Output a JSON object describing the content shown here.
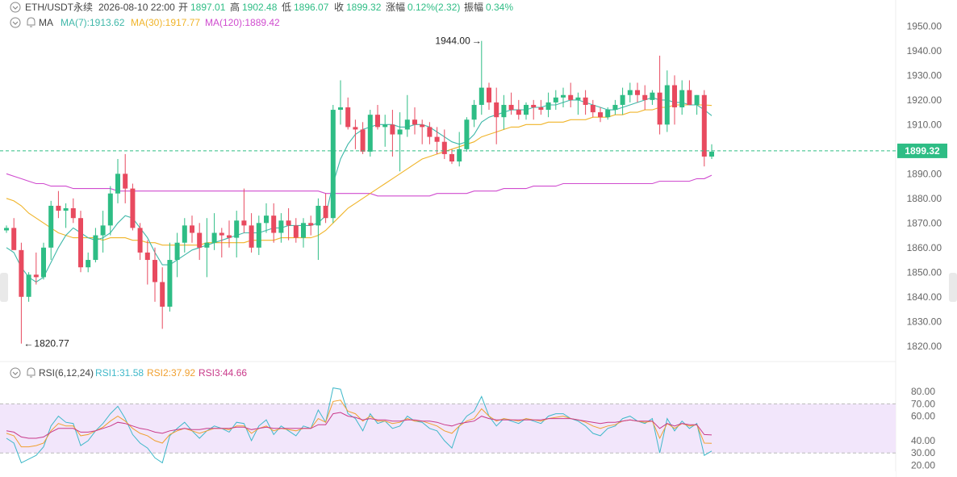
{
  "header": {
    "symbol": "ETH/USDT永续",
    "datetime": "2026-08-10 22:00",
    "open_label": "开",
    "open": "1897.01",
    "high_label": "高",
    "high": "1902.48",
    "low_label": "低",
    "low": "1896.07",
    "close_label": "收",
    "close": "1899.32",
    "change_label": "涨幅",
    "change": "0.12%(2.32)",
    "amp_label": "振幅",
    "amp": "0.34%"
  },
  "ma_legend": {
    "name": "MA",
    "ma7": "MA(7):1913.62",
    "ma30": "MA(30):1917.77",
    "ma120": "MA(120):1889.42"
  },
  "rsi_legend": {
    "name": "RSI(6,12,24)",
    "rsi1": "RSI1:31.58",
    "rsi2": "RSI2:37.92",
    "rsi3": "RSI3:44.66"
  },
  "annotations": {
    "high_label": "1944.00",
    "low_label": "1820.77",
    "last_price": "1899.32"
  },
  "colors": {
    "up": "#2ebd85",
    "down": "#e84a5f",
    "ma7": "#3fb8a9",
    "ma30": "#f0b429",
    "ma120": "#d04ccf",
    "rsi1": "#3fb8c9",
    "rsi2": "#f0a030",
    "rsi3": "#c93a8a",
    "rsi_band": "#f2e6fb"
  },
  "chart_data": [
    {
      "type": "candlestick",
      "ylim": [
        1815,
        1958
      ],
      "y_ticks": [
        1820,
        1830,
        1840,
        1850,
        1860,
        1870,
        1880,
        1890,
        1900,
        1910,
        1920,
        1930,
        1940,
        1950
      ],
      "last_price": 1899.32,
      "candles": [
        [
          1867,
          1869,
          1866,
          1868
        ],
        [
          1868,
          1872,
          1860,
          1859
        ],
        [
          1859,
          1862,
          1821,
          1840
        ],
        [
          1840,
          1850,
          1838,
          1849
        ],
        [
          1849,
          1858,
          1845,
          1848
        ],
        [
          1848,
          1862,
          1847,
          1860
        ],
        [
          1860,
          1879,
          1855,
          1877
        ],
        [
          1877,
          1883,
          1872,
          1875
        ],
        [
          1875,
          1878,
          1868,
          1876
        ],
        [
          1876,
          1880,
          1870,
          1872
        ],
        [
          1872,
          1875,
          1850,
          1852
        ],
        [
          1852,
          1858,
          1850,
          1855
        ],
        [
          1855,
          1868,
          1854,
          1865
        ],
        [
          1865,
          1875,
          1858,
          1869
        ],
        [
          1869,
          1885,
          1865,
          1882
        ],
        [
          1882,
          1896,
          1878,
          1890
        ],
        [
          1890,
          1898,
          1878,
          1884
        ],
        [
          1884,
          1886,
          1867,
          1868
        ],
        [
          1868,
          1870,
          1855,
          1858
        ],
        [
          1858,
          1863,
          1845,
          1855
        ],
        [
          1855,
          1860,
          1838,
          1846
        ],
        [
          1846,
          1852,
          1827,
          1836
        ],
        [
          1836,
          1862,
          1834,
          1855
        ],
        [
          1855,
          1866,
          1848,
          1862
        ],
        [
          1862,
          1872,
          1858,
          1869
        ],
        [
          1869,
          1873,
          1862,
          1866
        ],
        [
          1866,
          1870,
          1855,
          1860
        ],
        [
          1860,
          1872,
          1848,
          1862
        ],
        [
          1862,
          1874,
          1859,
          1866
        ],
        [
          1866,
          1868,
          1856,
          1865
        ],
        [
          1865,
          1871,
          1860,
          1864
        ],
        [
          1864,
          1875,
          1856,
          1871
        ],
        [
          1871,
          1884,
          1866,
          1869
        ],
        [
          1869,
          1874,
          1858,
          1860
        ],
        [
          1860,
          1873,
          1857,
          1870
        ],
        [
          1870,
          1878,
          1866,
          1873
        ],
        [
          1873,
          1878,
          1862,
          1866
        ],
        [
          1866,
          1874,
          1862,
          1871
        ],
        [
          1871,
          1876,
          1863,
          1869
        ],
        [
          1869,
          1872,
          1862,
          1864
        ],
        [
          1864,
          1872,
          1860,
          1870
        ],
        [
          1870,
          1873,
          1865,
          1869
        ],
        [
          1869,
          1880,
          1855,
          1877
        ],
        [
          1877,
          1882,
          1870,
          1872
        ],
        [
          1872,
          1918,
          1870,
          1916
        ],
        [
          1916,
          1928,
          1910,
          1917
        ],
        [
          1917,
          1921,
          1908,
          1909
        ],
        [
          1909,
          1912,
          1900,
          1908
        ],
        [
          1908,
          1911,
          1898,
          1899
        ],
        [
          1899,
          1916,
          1897,
          1914
        ],
        [
          1914,
          1918,
          1908,
          1909
        ],
        [
          1909,
          1914,
          1901,
          1910
        ],
        [
          1910,
          1916,
          1897,
          1906
        ],
        [
          1906,
          1915,
          1891,
          1908
        ],
        [
          1908,
          1922,
          1905,
          1912
        ],
        [
          1912,
          1917,
          1906,
          1910
        ],
        [
          1910,
          1912,
          1902,
          1909
        ],
        [
          1909,
          1911,
          1902,
          1905
        ],
        [
          1905,
          1909,
          1898,
          1903
        ],
        [
          1903,
          1908,
          1896,
          1898
        ],
        [
          1898,
          1900,
          1894,
          1895
        ],
        [
          1895,
          1907,
          1893,
          1900
        ],
        [
          1900,
          1913,
          1899,
          1912
        ],
        [
          1912,
          1920,
          1909,
          1918
        ],
        [
          1918,
          1944,
          1914,
          1925
        ],
        [
          1925,
          1927,
          1916,
          1919
        ],
        [
          1919,
          1925,
          1902,
          1913
        ],
        [
          1913,
          1922,
          1908,
          1918
        ],
        [
          1918,
          1923,
          1914,
          1916
        ],
        [
          1916,
          1920,
          1912,
          1914
        ],
        [
          1914,
          1919,
          1912,
          1918
        ],
        [
          1918,
          1920,
          1912,
          1917
        ],
        [
          1917,
          1920,
          1914,
          1916
        ],
        [
          1916,
          1923,
          1913,
          1919
        ],
        [
          1919,
          1924,
          1916,
          1921
        ],
        [
          1921,
          1925,
          1917,
          1922
        ],
        [
          1922,
          1927,
          1917,
          1920
        ],
        [
          1920,
          1923,
          1914,
          1921
        ],
        [
          1921,
          1924,
          1914,
          1918
        ],
        [
          1918,
          1920,
          1913,
          1915
        ],
        [
          1915,
          1917,
          1911,
          1913
        ],
        [
          1913,
          1917,
          1912,
          1916
        ],
        [
          1916,
          1920,
          1914,
          1918
        ],
        [
          1918,
          1925,
          1914,
          1922
        ],
        [
          1922,
          1927,
          1919,
          1924
        ],
        [
          1924,
          1927,
          1919,
          1922
        ],
        [
          1922,
          1926,
          1916,
          1920
        ],
        [
          1920,
          1924,
          1918,
          1923
        ],
        [
          1923,
          1938,
          1906,
          1910
        ],
        [
          1910,
          1932,
          1907,
          1926
        ],
        [
          1926,
          1930,
          1910,
          1917
        ],
        [
          1917,
          1928,
          1914,
          1924
        ],
        [
          1924,
          1928,
          1919,
          1918
        ],
        [
          1918,
          1922,
          1914,
          1922
        ],
        [
          1922,
          1924,
          1893,
          1897
        ],
        [
          1897,
          1902,
          1896,
          1899
        ]
      ],
      "ma7": [
        1860,
        1858,
        1852,
        1848,
        1846,
        1848,
        1854,
        1860,
        1865,
        1868,
        1866,
        1864,
        1863,
        1864,
        1866,
        1870,
        1873,
        1872,
        1868,
        1864,
        1858,
        1853,
        1853,
        1855,
        1857,
        1859,
        1860,
        1861,
        1862,
        1863,
        1864,
        1865,
        1866,
        1866,
        1866,
        1867,
        1868,
        1868,
        1869,
        1869,
        1869,
        1869,
        1870,
        1873,
        1886,
        1896,
        1902,
        1906,
        1908,
        1909,
        1910,
        1910,
        1910,
        1909,
        1909,
        1910,
        1910,
        1909,
        1907,
        1905,
        1903,
        1902,
        1903,
        1906,
        1911,
        1913,
        1914,
        1915,
        1916,
        1916,
        1916,
        1917,
        1917,
        1918,
        1918,
        1919,
        1920,
        1920,
        1919,
        1918,
        1917,
        1916,
        1916,
        1917,
        1918,
        1919,
        1920,
        1921,
        1920,
        1920,
        1919,
        1919,
        1918,
        1918,
        1916,
        1913.62
      ],
      "ma30": [
        1880,
        1879,
        1877,
        1874,
        1872,
        1870,
        1868,
        1866,
        1865,
        1864,
        1864,
        1864,
        1864,
        1863,
        1864,
        1864,
        1864,
        1863,
        1863,
        1862,
        1862,
        1861,
        1861,
        1861,
        1861,
        1861,
        1861,
        1862,
        1862,
        1862,
        1862,
        1862,
        1862,
        1863,
        1863,
        1863,
        1863,
        1864,
        1864,
        1864,
        1864,
        1864,
        1865,
        1867,
        1870,
        1873,
        1876,
        1878,
        1880,
        1882,
        1884,
        1886,
        1888,
        1890,
        1892,
        1894,
        1896,
        1897,
        1898,
        1899,
        1900,
        1901,
        1902,
        1903,
        1905,
        1906,
        1907,
        1908,
        1909,
        1909,
        1910,
        1910,
        1910,
        1911,
        1911,
        1911,
        1912,
        1912,
        1912,
        1913,
        1913,
        1913,
        1914,
        1914,
        1915,
        1915,
        1916,
        1916,
        1917,
        1917,
        1918,
        1918,
        1918,
        1918,
        1918,
        1917.77
      ],
      "ma120": [
        1890,
        1889,
        1888,
        1887,
        1886,
        1886,
        1885,
        1885,
        1885,
        1884,
        1884,
        1884,
        1884,
        1884,
        1884,
        1883,
        1883,
        1883,
        1883,
        1883,
        1883,
        1883,
        1883,
        1883,
        1883,
        1883,
        1883,
        1883,
        1883,
        1883,
        1883,
        1883,
        1883,
        1883,
        1883,
        1883,
        1883,
        1883,
        1883,
        1883,
        1883,
        1883,
        1883,
        1882,
        1882,
        1882,
        1882,
        1882,
        1882,
        1882,
        1881,
        1881,
        1881,
        1881,
        1881,
        1881,
        1881,
        1881,
        1882,
        1882,
        1882,
        1882,
        1882,
        1883,
        1883,
        1883,
        1883,
        1884,
        1884,
        1884,
        1884,
        1885,
        1885,
        1885,
        1885,
        1886,
        1886,
        1886,
        1886,
        1886,
        1886,
        1886,
        1886,
        1886,
        1886,
        1886,
        1886,
        1886,
        1887,
        1887,
        1887,
        1887,
        1887,
        1888,
        1888,
        1889.42
      ]
    },
    {
      "type": "line",
      "ylim": [
        15,
        90
      ],
      "band": [
        30,
        70
      ],
      "y_ticks": [
        20,
        30,
        40,
        60,
        70,
        80
      ],
      "series": [
        {
          "name": "RSI1",
          "values": [
            42,
            38,
            22,
            25,
            28,
            35,
            52,
            60,
            55,
            54,
            36,
            40,
            48,
            54,
            62,
            68,
            58,
            45,
            38,
            34,
            26,
            22,
            44,
            50,
            55,
            48,
            42,
            48,
            52,
            50,
            47,
            55,
            54,
            40,
            52,
            57,
            45,
            52,
            48,
            44,
            52,
            50,
            65,
            55,
            83,
            82,
            62,
            58,
            48,
            62,
            54,
            56,
            50,
            52,
            60,
            56,
            55,
            50,
            48,
            40,
            34,
            52,
            60,
            64,
            76,
            60,
            52,
            58,
            56,
            54,
            58,
            56,
            54,
            60,
            62,
            62,
            58,
            56,
            52,
            46,
            44,
            50,
            52,
            58,
            60,
            56,
            54,
            58,
            30,
            58,
            48,
            56,
            50,
            54,
            28,
            31.58
          ]
        },
        {
          "name": "RSI2",
          "values": [
            46,
            44,
            35,
            35,
            36,
            38,
            48,
            54,
            52,
            52,
            44,
            45,
            48,
            51,
            56,
            60,
            56,
            50,
            46,
            44,
            40,
            38,
            45,
            48,
            50,
            48,
            46,
            48,
            50,
            50,
            49,
            52,
            52,
            46,
            50,
            52,
            48,
            50,
            49,
            48,
            50,
            50,
            58,
            55,
            72,
            73,
            64,
            62,
            56,
            60,
            56,
            56,
            54,
            55,
            58,
            56,
            56,
            54,
            52,
            48,
            46,
            52,
            56,
            58,
            66,
            60,
            56,
            58,
            57,
            56,
            58,
            57,
            56,
            58,
            59,
            60,
            58,
            57,
            55,
            52,
            50,
            52,
            53,
            56,
            57,
            56,
            55,
            56,
            42,
            54,
            50,
            54,
            52,
            53,
            38,
            37.92
          ]
        },
        {
          "name": "RSI3",
          "values": [
            48,
            47,
            43,
            42,
            42,
            43,
            47,
            50,
            50,
            50,
            47,
            47,
            48,
            50,
            52,
            55,
            54,
            52,
            50,
            49,
            47,
            46,
            48,
            49,
            50,
            49,
            49,
            50,
            50,
            50,
            50,
            51,
            51,
            49,
            50,
            51,
            50,
            50,
            50,
            50,
            50,
            50,
            53,
            53,
            62,
            63,
            60,
            59,
            57,
            58,
            57,
            57,
            56,
            56,
            57,
            57,
            56,
            56,
            55,
            53,
            52,
            54,
            55,
            56,
            60,
            58,
            57,
            57,
            57,
            57,
            57,
            57,
            57,
            58,
            58,
            58,
            58,
            57,
            56,
            55,
            54,
            55,
            55,
            56,
            57,
            56,
            56,
            56,
            50,
            54,
            52,
            54,
            53,
            53,
            45,
            44.66
          ]
        }
      ]
    }
  ]
}
